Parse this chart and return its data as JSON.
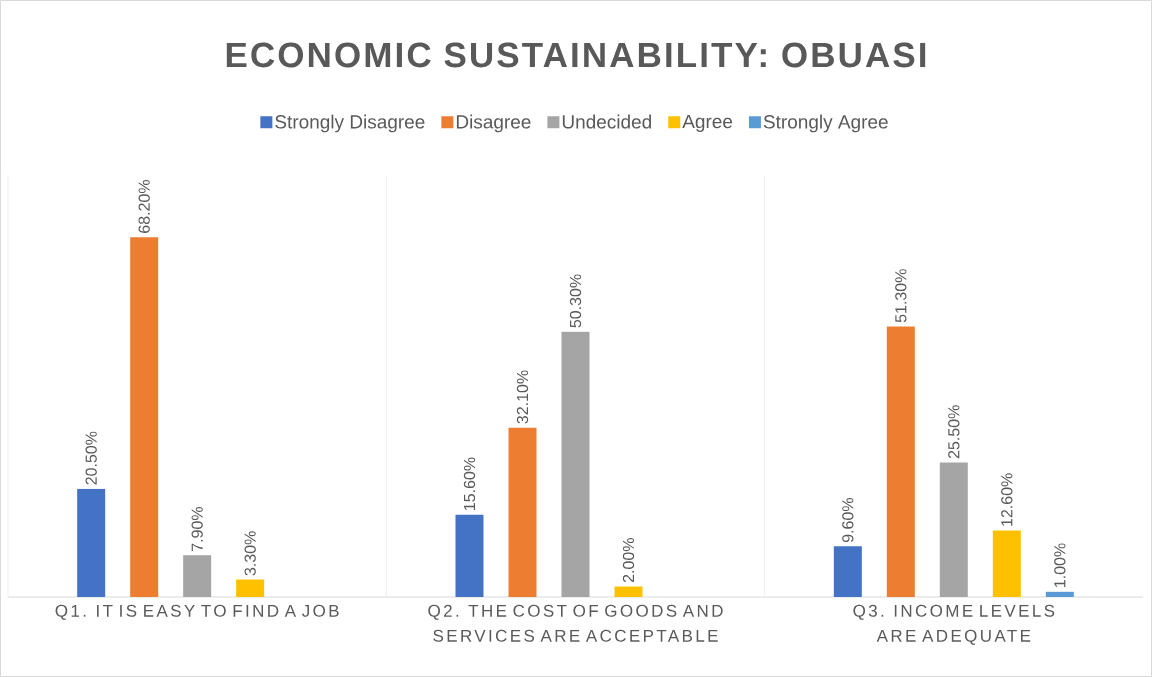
{
  "chart_data": {
    "type": "bar",
    "title": "ECONOMIC SUSTAINABILITY: OBUASI",
    "categories": [
      "Q1. IT IS EASY TO FIND A JOB",
      "Q2. THE COST OF GOODS AND SERVICES ARE ACCEPTABLE",
      "Q3. INCOME LEVELS ARE ADEQUATE"
    ],
    "series": [
      {
        "name": "Strongly Disagree",
        "color": "#4472c4",
        "values": [
          20.5,
          15.6,
          9.6
        ],
        "value_labels": [
          "20.50%",
          "15.60%",
          "9.60%"
        ]
      },
      {
        "name": "Disagree",
        "color": "#ed7d31",
        "values": [
          68.2,
          32.1,
          51.3
        ],
        "value_labels": [
          "68.20%",
          "32.10%",
          "51.30%"
        ]
      },
      {
        "name": "Undecided",
        "color": "#a5a5a5",
        "values": [
          7.9,
          50.3,
          25.5
        ],
        "value_labels": [
          "7.90%",
          "50.30%",
          "25.50%"
        ]
      },
      {
        "name": "Agree",
        "color": "#ffc000",
        "values": [
          3.3,
          2.0,
          12.6
        ],
        "value_labels": [
          "3.30%",
          "2.00%",
          "12.60%"
        ]
      },
      {
        "name": "Strongly Agree",
        "color": "#5b9bd5",
        "values": [
          null,
          null,
          1.0
        ],
        "value_labels": [
          null,
          null,
          "1.00%"
        ]
      }
    ],
    "legend": "top",
    "grid": "x"
  }
}
